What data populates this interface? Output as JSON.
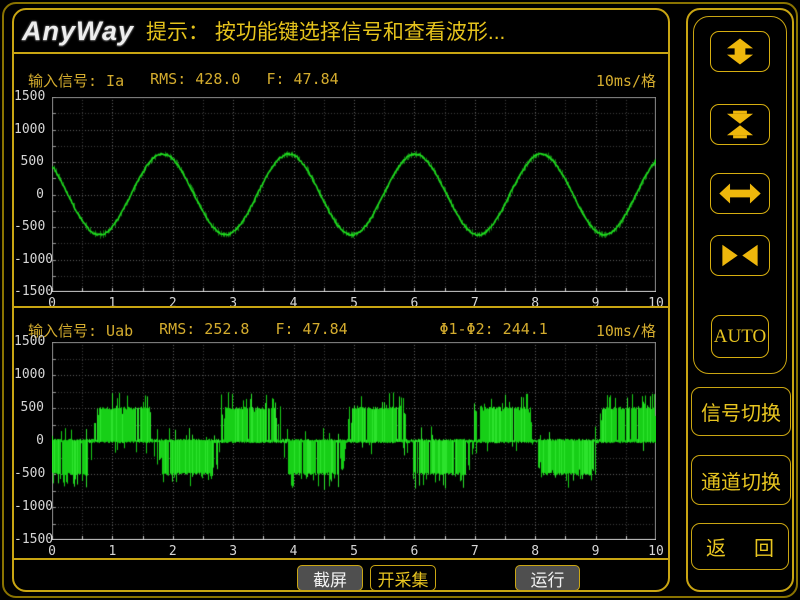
{
  "titlebar": {
    "logo_text": "AnyWay",
    "hint": "提示： 按功能键选择信号和查看波形..."
  },
  "charts": [
    {
      "signal_label": "输入信号: Ia",
      "rms_label": "RMS: 428.0",
      "freq_label": "F: 47.84",
      "scale_label": "10ms/格",
      "y_ticks": [
        "1500",
        "1000",
        "500",
        "0",
        "-500",
        "-1000",
        "-1500"
      ],
      "x_ticks": [
        "0",
        "1",
        "2",
        "3",
        "4",
        "5",
        "6",
        "7",
        "8",
        "9",
        "10"
      ],
      "waveform": {
        "type": "sine",
        "amplitude": 620,
        "period_div": 2.09,
        "phase_rad": 2.35,
        "noise": 14,
        "color": "#1fdd1f",
        "seed": 7
      }
    },
    {
      "signal_label": "输入信号: Uab",
      "rms_label": "RMS: 252.8",
      "freq_label": "F: 47.84",
      "phase_label": "Φ1-Φ2: 244.1",
      "scale_label": "10ms/格",
      "y_ticks": [
        "1500",
        "1000",
        "500",
        "0",
        "-500",
        "-1000",
        "-1500"
      ],
      "x_ticks": [
        "0",
        "1",
        "2",
        "3",
        "4",
        "5",
        "6",
        "7",
        "8",
        "9",
        "10"
      ],
      "waveform": {
        "type": "pwm",
        "rail": 500,
        "spike_max": 740,
        "period_div": 2.09,
        "upcross_div": 0.67,
        "color": "#17cf17",
        "seed": 99
      }
    }
  ],
  "chart_data": [
    {
      "type": "line",
      "title": "输入信号: Ia",
      "xlim": [
        0,
        10
      ],
      "ylim": [
        -1500,
        1500
      ],
      "x_unit": "10ms/格 (10 ms per division)",
      "grid": true,
      "series": [
        {
          "name": "Ia",
          "waveform": "sine",
          "amplitude_peak": 620,
          "rms": 428.0,
          "frequency_hz": 47.84,
          "period_divisions": 2.09,
          "value_at_x0": 440,
          "minima_x": [
            0.85,
            2.95,
            5.0,
            7.05,
            9.2
          ],
          "maxima_x": [
            1.9,
            3.95,
            6.0,
            8.1
          ]
        }
      ]
    },
    {
      "type": "line",
      "title": "输入信号: Uab",
      "xlim": [
        0,
        10
      ],
      "ylim": [
        -1500,
        1500
      ],
      "x_unit": "10ms/格 (10 ms per division)",
      "grid": true,
      "series": [
        {
          "name": "Uab",
          "waveform": "pwm",
          "rail_level": 500,
          "spike_peak": 740,
          "rms": 252.8,
          "frequency_hz": 47.84,
          "period_divisions": 2.09,
          "phase_diff_deg_phi1_phi2": 244.1,
          "positive_blocks_x": [
            [
              0.7,
              1.75
            ],
            [
              2.9,
              3.85
            ],
            [
              4.95,
              5.95
            ],
            [
              7.05,
              8.05
            ],
            [
              9.15,
              10
            ]
          ],
          "negative_blocks_x": [
            [
              0,
              0.65
            ],
            [
              1.8,
              2.8
            ],
            [
              3.9,
              4.9
            ],
            [
              5.95,
              6.9
            ],
            [
              8.1,
              9.05
            ]
          ]
        }
      ]
    }
  ],
  "sidebar": {
    "zoom_buttons": [
      {
        "icon": "expand-vertical-icon"
      },
      {
        "icon": "compress-vertical-icon"
      },
      {
        "icon": "expand-horizontal-icon"
      },
      {
        "icon": "compress-horizontal-icon"
      }
    ],
    "auto_label": "AUTO",
    "signal_switch_label": "信号切换",
    "channel_switch_label": "通道切换",
    "return_label_left": "返",
    "return_label_right": "回"
  },
  "bottom_bar": {
    "screenshot_label": "截屏",
    "start_capture_label": "开采集",
    "run_label": "运行"
  },
  "colors": {
    "accent_border": "#c9a512",
    "outer_border": "#8a7300",
    "accent_text": "#e8c520",
    "header_text": "#d4ac2e",
    "hint_text": "#e5c31c",
    "waveform_green": "#1fdd1f",
    "axis_text": "#d6d6d6",
    "button_gray_bg": "#4f4f4f",
    "button_text_white": "#f2f2f2"
  }
}
